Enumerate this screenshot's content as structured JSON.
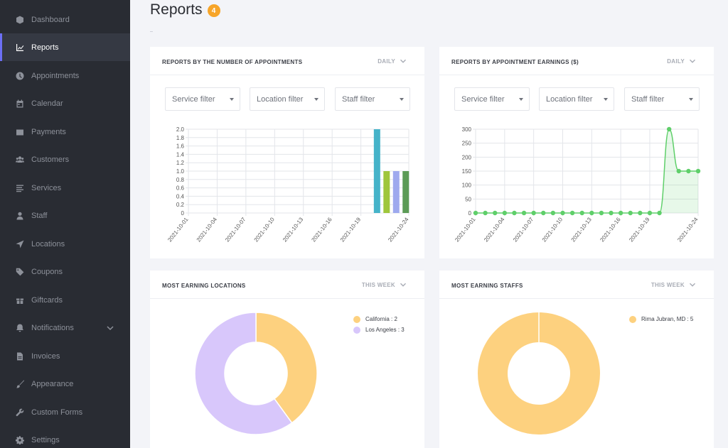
{
  "sidebar": {
    "items": [
      {
        "label": "Dashboard",
        "icon": "cube-icon"
      },
      {
        "label": "Reports",
        "icon": "chart-line-icon",
        "active": true
      },
      {
        "label": "Appointments",
        "icon": "clock-icon"
      },
      {
        "label": "Calendar",
        "icon": "calendar-icon"
      },
      {
        "label": "Payments",
        "icon": "wallet-icon"
      },
      {
        "label": "Customers",
        "icon": "users-icon"
      },
      {
        "label": "Services",
        "icon": "list-icon"
      },
      {
        "label": "Staff",
        "icon": "user-icon"
      },
      {
        "label": "Locations",
        "icon": "location-arrow-icon"
      },
      {
        "label": "Coupons",
        "icon": "tag-icon"
      },
      {
        "label": "Giftcards",
        "icon": "gift-icon"
      },
      {
        "label": "Notifications",
        "icon": "bell-icon",
        "expandable": true
      },
      {
        "label": "Invoices",
        "icon": "file-icon"
      },
      {
        "label": "Appearance",
        "icon": "brush-icon"
      },
      {
        "label": "Custom Forms",
        "icon": "wrench-icon"
      },
      {
        "label": "Settings",
        "icon": "gear-icon"
      }
    ]
  },
  "header": {
    "title": "Reports",
    "badge": "4"
  },
  "colors": {
    "sidebar_bg": "#292c33",
    "active_accent": "#6c6ff5",
    "badge": "#f7a529",
    "line": "#5fcf6a",
    "donut_yellow": "#fdd17f",
    "donut_purple": "#d8c7fb"
  },
  "cards": {
    "appointments": {
      "title": "REPORTS BY THE NUMBER OF APPOINTMENTS",
      "period": "DAILY"
    },
    "earnings": {
      "title": "REPORTS BY APPOINTMENT EARNINGS ($)",
      "period": "DAILY"
    },
    "locations": {
      "title": "MOST EARNING LOCATIONS",
      "period": "THIS WEEK"
    },
    "staffs": {
      "title": "MOST EARNING STAFFS",
      "period": "THIS WEEK"
    }
  },
  "filters": {
    "service": "Service filter",
    "location": "Location filter",
    "staff": "Staff filter"
  },
  "chart_data": [
    {
      "type": "bar",
      "title": "",
      "xlabel": "",
      "ylabel": "",
      "x": [
        "2021-10-01",
        "2021-10-02",
        "2021-10-03",
        "2021-10-04",
        "2021-10-05",
        "2021-10-06",
        "2021-10-07",
        "2021-10-08",
        "2021-10-09",
        "2021-10-10",
        "2021-10-11",
        "2021-10-12",
        "2021-10-13",
        "2021-10-14",
        "2021-10-15",
        "2021-10-16",
        "2021-10-17",
        "2021-10-18",
        "2021-10-19",
        "2021-10-20",
        "2021-10-21",
        "2021-10-22",
        "2021-10-23",
        "2021-10-24"
      ],
      "values": [
        0,
        0,
        0,
        0,
        0,
        0,
        0,
        0,
        0,
        0,
        0,
        0,
        0,
        0,
        0,
        0,
        0,
        0,
        0,
        0,
        2,
        1,
        1,
        1
      ],
      "bar_colors": [
        "#45b3c9",
        "#9fc63b",
        "#9ea9ee",
        "#5c9b56"
      ],
      "ylim": [
        0,
        2.0
      ],
      "yticks": [
        "0",
        "0.2",
        "0.4",
        "0.6",
        "0.8",
        "1.0",
        "1.2",
        "1.4",
        "1.6",
        "1.8",
        "2.0"
      ],
      "xtick_labels": [
        "2021-10-01",
        "2021-10-04",
        "2021-10-07",
        "2021-10-10",
        "2021-10-13",
        "2021-10-16",
        "2021-10-19",
        "2021-10-24"
      ],
      "grid": true
    },
    {
      "type": "line",
      "title": "",
      "xlabel": "",
      "ylabel": "",
      "x": [
        "2021-10-01",
        "2021-10-02",
        "2021-10-03",
        "2021-10-04",
        "2021-10-05",
        "2021-10-06",
        "2021-10-07",
        "2021-10-08",
        "2021-10-09",
        "2021-10-10",
        "2021-10-11",
        "2021-10-12",
        "2021-10-13",
        "2021-10-14",
        "2021-10-15",
        "2021-10-16",
        "2021-10-17",
        "2021-10-18",
        "2021-10-19",
        "2021-10-20",
        "2021-10-21",
        "2021-10-22",
        "2021-10-23",
        "2021-10-24"
      ],
      "values": [
        0,
        0,
        0,
        0,
        0,
        0,
        0,
        0,
        0,
        0,
        0,
        0,
        0,
        0,
        0,
        0,
        0,
        0,
        0,
        0,
        300,
        150,
        150,
        150
      ],
      "ylim": [
        0,
        300
      ],
      "yticks": [
        "0",
        "50",
        "100",
        "150",
        "200",
        "250",
        "300"
      ],
      "xtick_labels": [
        "2021-10-01",
        "2021-10-04",
        "2021-10-07",
        "2021-10-10",
        "2021-10-13",
        "2021-10-16",
        "2021-10-19",
        "2021-10-24"
      ],
      "grid": true,
      "fill": true
    },
    {
      "type": "pie",
      "donut": true,
      "labels": [
        "California : 2",
        "Los Angeles : 3"
      ],
      "values": [
        2,
        3
      ],
      "colors": [
        "#fdd17f",
        "#d8c7fb"
      ],
      "legend": "top-right"
    },
    {
      "type": "pie",
      "donut": true,
      "labels": [
        "Rima Jubran, MD : 5"
      ],
      "values": [
        5
      ],
      "colors": [
        "#fdd17f"
      ],
      "legend": "top-right"
    }
  ]
}
